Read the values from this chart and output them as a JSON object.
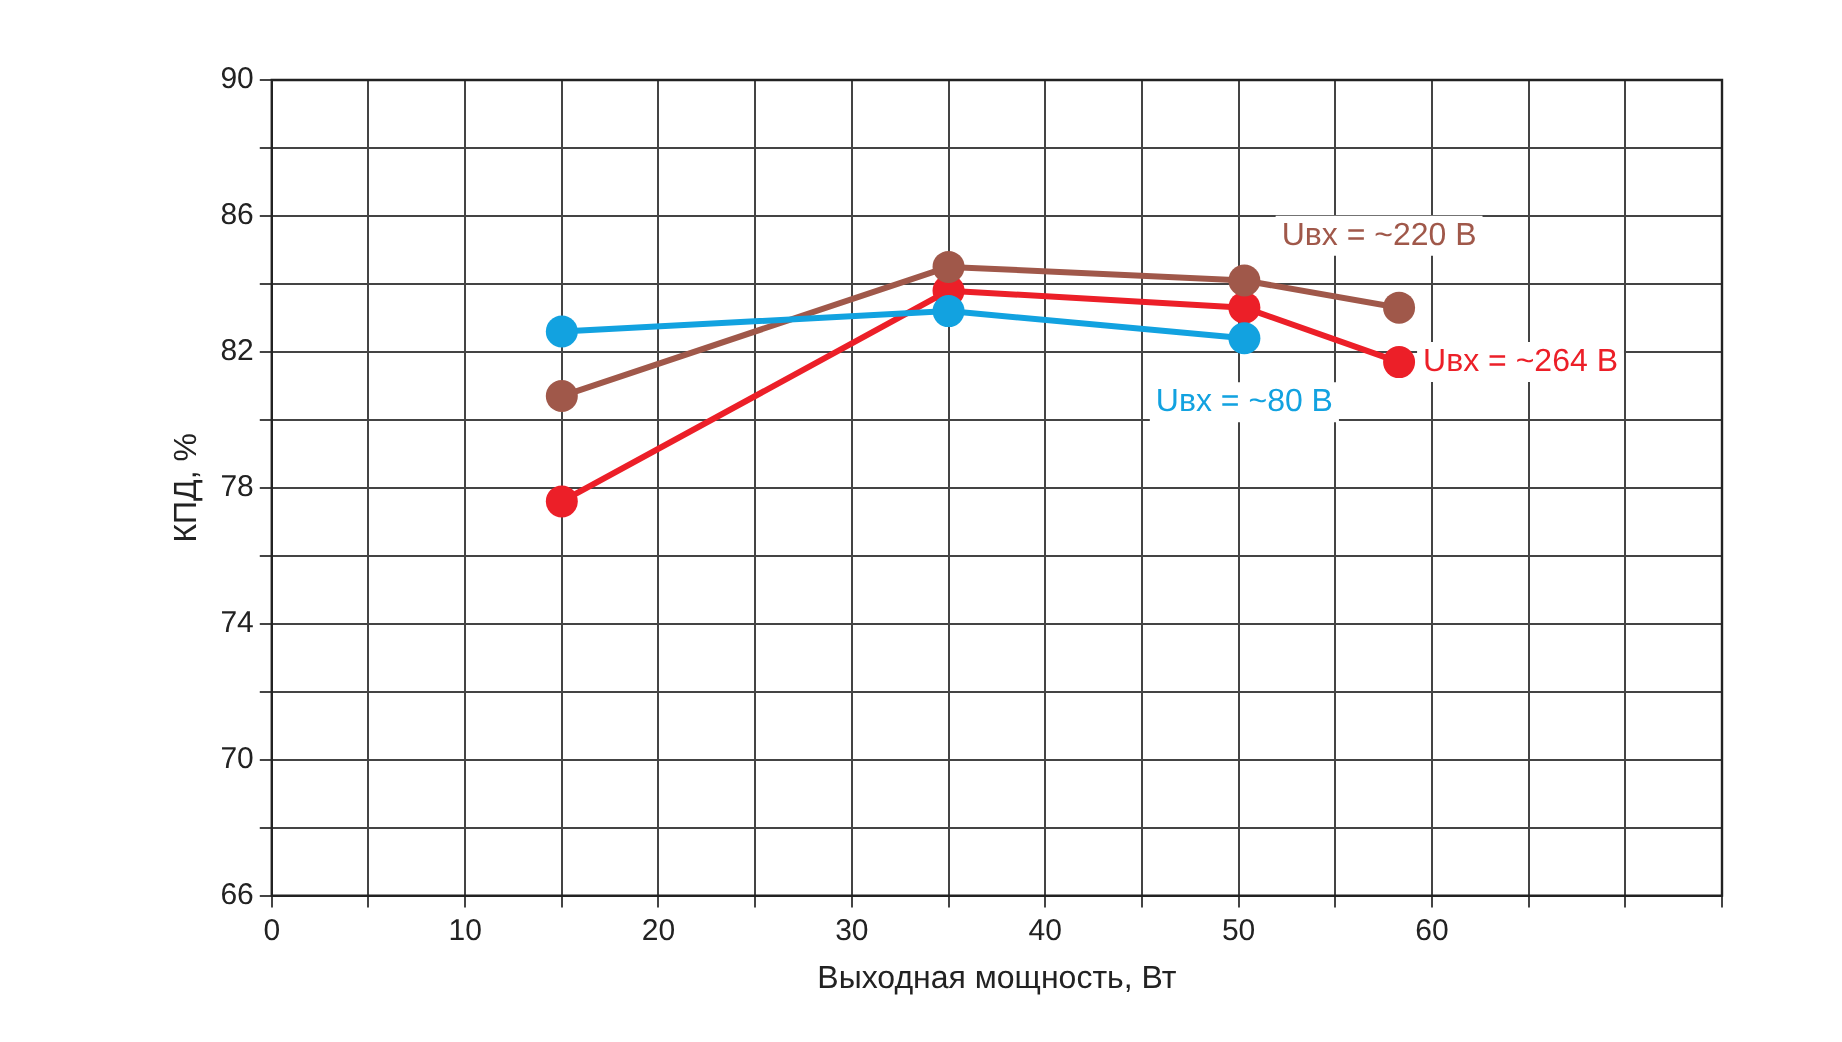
{
  "chart_data": {
    "type": "line",
    "xlabel": "Выходная мощность, Вт",
    "ylabel": "КПД, %",
    "xlim": [
      0,
      75
    ],
    "xticks": [
      0,
      {
        "value": 5,
        "label": null
      },
      10,
      {
        "value": 15,
        "label": null
      },
      20,
      {
        "value": 25,
        "label": null
      },
      30,
      {
        "value": 35,
        "label": null
      },
      40,
      {
        "value": 45,
        "label": null
      },
      50,
      {
        "value": 55,
        "label": null
      },
      60,
      {
        "value": 65,
        "label": null
      },
      {
        "value": 70,
        "label": null
      },
      {
        "value": 75,
        "label": null
      }
    ],
    "ylim": [
      66,
      90
    ],
    "yticks": [
      66,
      {
        "value": 68,
        "label": null
      },
      70,
      {
        "value": 72,
        "label": null
      },
      74,
      {
        "value": 76,
        "label": null
      },
      78,
      {
        "value": 80,
        "label": null
      },
      82,
      {
        "value": 84,
        "label": null
      },
      86,
      {
        "value": 88,
        "label": null
      },
      90
    ],
    "grid": true,
    "legend": false,
    "marker": "circle",
    "line_style": "solid",
    "series": [
      {
        "name": "Uвх = ~80 В",
        "color": "#12a2e0",
        "x": [
          15,
          35,
          50.3
        ],
        "values": [
          82.6,
          83.2,
          82.4
        ]
      },
      {
        "name": "Uвх = ~220 В",
        "color": "#a0584a",
        "x": [
          15,
          35,
          50.3,
          58.3
        ],
        "values": [
          80.7,
          84.5,
          84.1,
          83.3
        ]
      },
      {
        "name": "Uвх = ~264 В",
        "color": "#ec1f28",
        "x": [
          15,
          35,
          50.3,
          58.3
        ],
        "values": [
          77.6,
          83.8,
          83.3,
          81.7
        ]
      }
    ]
  }
}
